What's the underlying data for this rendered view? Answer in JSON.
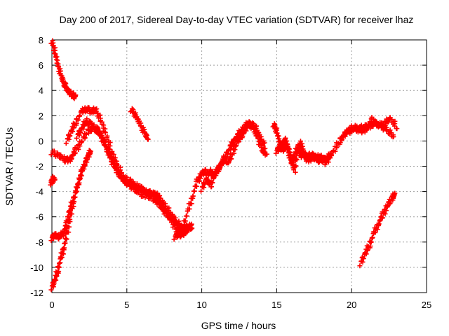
{
  "chart_data": {
    "type": "scatter",
    "title": "Day 200 of 2017, Sidereal Day-to-day VTEC variation (SDTVAR) for receiver lhaz",
    "xlabel": "GPS time / hours",
    "ylabel": "SDTVAR / TECUs",
    "xlim": [
      0,
      25
    ],
    "ylim": [
      -12,
      8
    ],
    "xticks": [
      0,
      5,
      10,
      15,
      20,
      25
    ],
    "yticks": [
      -12,
      -10,
      -8,
      -6,
      -4,
      -2,
      0,
      2,
      4,
      6,
      8
    ],
    "grid": true,
    "marker": "+",
    "marker_color": "#ff0000",
    "series": [
      {
        "name": "arc-top-left",
        "x": [
          0.0,
          0.2,
          0.4,
          0.6,
          0.8,
          1.0,
          1.2,
          1.4,
          1.6
        ],
        "y": [
          7.9,
          7.1,
          6.0,
          5.2,
          4.6,
          4.1,
          3.8,
          3.6,
          3.5
        ]
      },
      {
        "name": "arc-steep-rise",
        "x": [
          0.0,
          0.2,
          0.4,
          0.6,
          0.8,
          1.0,
          1.2,
          1.4,
          1.6,
          1.8,
          2.0,
          2.2,
          2.4,
          2.6
        ],
        "y": [
          -11.6,
          -11.0,
          -10.2,
          -9.3,
          -8.4,
          -7.4,
          -6.2,
          -5.0,
          -4.0,
          -3.2,
          -2.4,
          -1.8,
          -1.2,
          -0.8
        ]
      },
      {
        "name": "arc-left-small",
        "x": [
          -0.05,
          0.05,
          0.15
        ],
        "y": [
          -3.3,
          -3.1,
          -2.9
        ]
      },
      {
        "name": "arc-lower-rise",
        "x": [
          0.0,
          0.2,
          0.4,
          0.6,
          0.8,
          1.0,
          1.2,
          1.4
        ],
        "y": [
          -7.7,
          -7.4,
          -7.6,
          -7.5,
          -7.2,
          -6.5,
          -5.5,
          -4.6
        ]
      },
      {
        "name": "arc-main-a",
        "x": [
          0.0,
          0.4,
          0.8,
          1.0,
          1.3,
          1.6,
          2.0,
          2.4,
          2.8,
          3.2,
          3.6,
          4.0,
          4.4,
          4.8,
          5.2,
          5.6,
          6.0,
          6.4,
          6.8,
          7.0,
          7.2,
          7.6,
          8.0,
          8.4,
          8.6,
          8.8,
          9.0,
          9.3
        ],
        "y": [
          -0.9,
          -1.1,
          -1.4,
          -1.6,
          -1.3,
          -0.7,
          0.0,
          0.8,
          1.0,
          0.6,
          -0.5,
          -1.6,
          -2.5,
          -3.1,
          -3.4,
          -3.6,
          -3.8,
          -4.1,
          -4.2,
          -4.3,
          -4.6,
          -5.2,
          -5.9,
          -6.5,
          -6.8,
          -6.9,
          -6.8,
          -6.9
        ]
      },
      {
        "name": "arc-main-b",
        "x": [
          1.0,
          1.3,
          1.6,
          2.0,
          2.3,
          2.6,
          2.9,
          3.2,
          3.6,
          4.0,
          4.4,
          4.8,
          5.2,
          5.6,
          6.0,
          6.4,
          6.8,
          7.0,
          7.3,
          7.6,
          8.0,
          8.4,
          8.8,
          9.0,
          9.3
        ],
        "y": [
          0.0,
          0.8,
          1.5,
          2.3,
          2.6,
          2.3,
          2.5,
          1.8,
          0.6,
          -0.9,
          -2.0,
          -2.9,
          -3.2,
          -3.5,
          -3.8,
          -4.3,
          -4.6,
          -4.8,
          -5.2,
          -5.7,
          -6.1,
          -6.7,
          -7.3,
          -7.0,
          -6.7
        ]
      },
      {
        "name": "arc-main-c",
        "x": [
          1.7,
          2.0,
          2.3,
          2.6,
          2.9,
          3.2,
          3.5,
          3.8,
          4.1,
          4.4,
          4.7,
          5.0,
          5.4,
          5.8,
          6.2,
          6.6,
          7.0,
          7.4,
          7.8,
          8.2,
          8.5,
          8.8,
          9.1,
          9.3
        ],
        "y": [
          0.4,
          1.0,
          1.6,
          1.3,
          1.1,
          0.6,
          -0.1,
          -0.9,
          -1.7,
          -2.4,
          -3.0,
          -3.3,
          -3.7,
          -4.1,
          -4.3,
          -4.0,
          -4.5,
          -5.3,
          -6.0,
          -6.8,
          -7.5,
          -7.3,
          -6.9,
          -6.8
        ]
      },
      {
        "name": "arc-short-mid",
        "x": [
          5.3,
          5.6,
          5.9,
          6.2,
          6.4
        ],
        "y": [
          2.5,
          2.0,
          1.3,
          0.6,
          0.2
        ]
      },
      {
        "name": "arc-recovery",
        "x": [
          8.2,
          8.5,
          8.8,
          9.1,
          9.4,
          9.7,
          10.0,
          10.2,
          10.4,
          10.6,
          10.8,
          11.0,
          11.3,
          11.6,
          11.9,
          12.2,
          12.5,
          12.8,
          13.1,
          13.4,
          13.7,
          14.0,
          14.3
        ],
        "y": [
          -7.6,
          -7.3,
          -6.6,
          -5.5,
          -4.3,
          -3.2,
          -2.6,
          -2.4,
          -2.6,
          -2.4,
          -2.8,
          -2.4,
          -1.8,
          -1.2,
          -0.5,
          0.1,
          0.6,
          1.0,
          1.5,
          1.1,
          0.4,
          -0.6,
          -1.1
        ]
      },
      {
        "name": "arc-recovery-b",
        "x": [
          10.0,
          10.3,
          10.6,
          10.9,
          11.2,
          11.5,
          11.8,
          12.1,
          12.4,
          12.7,
          13.0,
          13.3,
          13.6,
          13.9,
          14.2
        ],
        "y": [
          -3.8,
          -3.0,
          -3.5,
          -2.6,
          -2.0,
          -1.5,
          -1.7,
          -0.8,
          0.0,
          0.5,
          1.1,
          1.4,
          1.0,
          0.3,
          -0.4
        ]
      },
      {
        "name": "arc-15",
        "x": [
          14.8,
          15.0,
          15.2,
          15.4,
          15.6,
          15.8,
          16.0,
          16.2,
          16.4,
          16.6,
          16.8,
          17.0,
          17.2,
          17.4,
          17.6,
          17.8,
          18.0,
          18.3,
          18.6
        ],
        "y": [
          1.3,
          0.8,
          -0.2,
          -0.8,
          -0.3,
          -0.6,
          -1.6,
          -2.3,
          -0.8,
          -0.1,
          -1.0,
          -1.4,
          -1.5,
          -1.2,
          -1.3,
          -1.6,
          -1.3,
          -1.5,
          -1.0
        ]
      },
      {
        "name": "arc-15-b",
        "x": [
          15.0,
          15.2,
          15.4,
          15.6,
          15.8,
          16.0,
          16.2,
          16.4,
          16.6,
          16.8,
          17.0,
          17.3,
          17.6,
          17.9,
          18.2,
          18.5
        ],
        "y": [
          -0.8,
          -0.5,
          -0.2,
          0.1,
          -0.9,
          -1.7,
          -1.2,
          -0.4,
          -1.2,
          -0.9,
          -1.3,
          -1.0,
          -1.4,
          -1.2,
          -1.7,
          -1.4
        ]
      },
      {
        "name": "arc-late",
        "x": [
          18.4,
          18.8,
          19.2,
          19.6,
          20.0,
          20.4,
          20.8,
          21.2,
          21.6,
          22.0,
          22.4,
          22.8
        ],
        "y": [
          -1.4,
          -0.8,
          0.0,
          0.6,
          0.9,
          1.0,
          1.1,
          1.2,
          1.4,
          1.2,
          0.8,
          0.4
        ]
      },
      {
        "name": "arc-late-b",
        "x": [
          19.4,
          19.8,
          20.2,
          20.6,
          21.0,
          21.4,
          21.8,
          22.2,
          22.6,
          23.0
        ],
        "y": [
          0.3,
          0.9,
          1.1,
          0.7,
          1.0,
          1.7,
          1.2,
          1.4,
          1.8,
          1.1
        ]
      },
      {
        "name": "arc-final-rise",
        "x": [
          20.6,
          20.9,
          21.2,
          21.5,
          21.8,
          22.1,
          22.4,
          22.7,
          22.9
        ],
        "y": [
          -9.7,
          -8.9,
          -8.2,
          -7.3,
          -6.5,
          -5.8,
          -5.1,
          -4.5,
          -4.2
        ]
      }
    ]
  }
}
